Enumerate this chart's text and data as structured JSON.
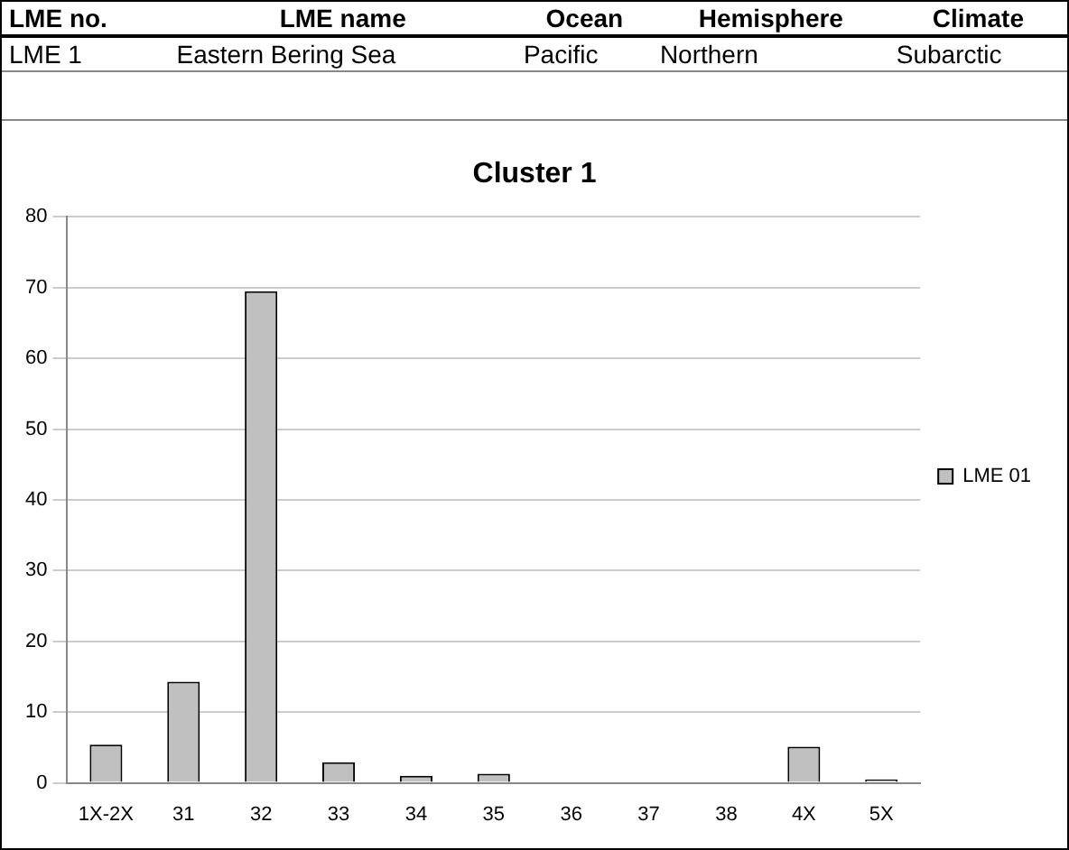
{
  "chart_data": {
    "type": "bar",
    "title": "Cluster 1",
    "annotations": [
      "LME no.",
      "LME name",
      "Ocean",
      "Hemisphere",
      "Climate",
      "LME 1",
      "Eastern Bering Sea",
      "Pacific",
      "Northern",
      "Subarctic"
    ],
    "categories": [
      "1X-2X",
      "31",
      "32",
      "33",
      "34",
      "35",
      "36",
      "37",
      "38",
      "4X",
      "5X"
    ],
    "series": [
      {
        "name": "LME 01",
        "color": "#c0c0c0",
        "values": [
          5.4,
          14.3,
          69.5,
          2.9,
          1.0,
          1.3,
          0,
          0,
          0,
          5.1,
          0.5
        ]
      }
    ],
    "ylim": [
      0,
      80
    ],
    "yticks": [
      0,
      10,
      20,
      30,
      40,
      50,
      60,
      70,
      80
    ],
    "grid": "y",
    "legend": "right"
  }
}
